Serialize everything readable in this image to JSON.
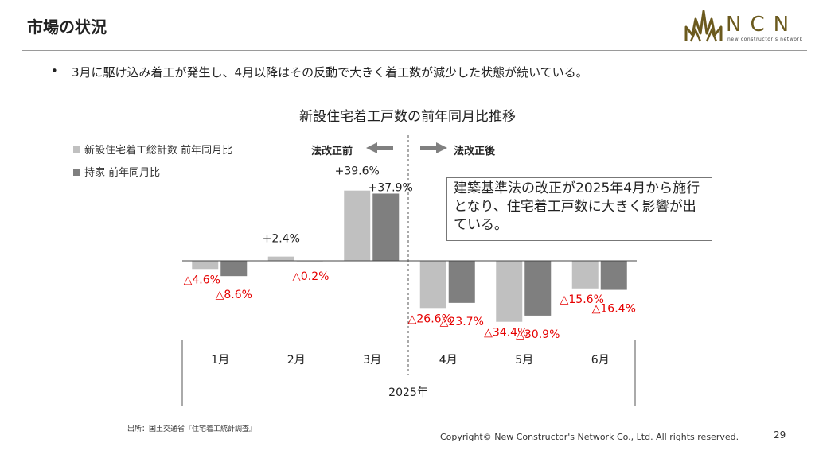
{
  "header": {
    "title": "市場の状況",
    "logo_text": "NCN",
    "logo_subtext": "new constructor's network"
  },
  "bullet": {
    "marker": "•",
    "text": "3月に駆け込み着工が発生し、4月以降はその反動で大きく着工数が減少した状態が続いている。"
  },
  "annotations": {
    "before_label": "法改正前",
    "after_label": "法改正後",
    "callout": "建築基準法の改正が2025年4月から施行となり、住宅着工戸数に大きく影響が出ている。"
  },
  "footer": {
    "source": "出所：国土交通省『住宅着工統計調査』",
    "copyright": "Copyright© New Constructor's Network Co., Ltd. All rights reserved.",
    "page": "29"
  },
  "colors": {
    "series1": "#c0c0c0",
    "series2": "#7f7f7f",
    "negative_label": "#e60000",
    "logo": "#6b5a1e"
  },
  "chart_data": {
    "type": "bar",
    "title": "新設住宅着工戸数の前年同月比推移",
    "categories": [
      "1月",
      "2月",
      "3月",
      "4月",
      "5月",
      "6月"
    ],
    "x_group_label": "2025年",
    "unit": "%",
    "series": [
      {
        "name": "新設住宅着工総計数 前年同月比",
        "values": [
          -4.6,
          2.4,
          39.6,
          -26.6,
          -34.4,
          -15.6
        ],
        "labels": [
          "△4.6%",
          "+2.4%",
          "+39.6%",
          "△26.6%",
          "△34.4%",
          "△15.6%"
        ]
      },
      {
        "name": "持家 前年同月比",
        "values": [
          -8.6,
          -0.2,
          37.9,
          -23.7,
          -30.9,
          -16.4
        ],
        "labels": [
          "△8.6%",
          "△0.2%",
          "+37.9%",
          "△23.7%",
          "△30.9%",
          "△16.4%"
        ]
      }
    ],
    "legend": "top-left",
    "grid": false
  }
}
